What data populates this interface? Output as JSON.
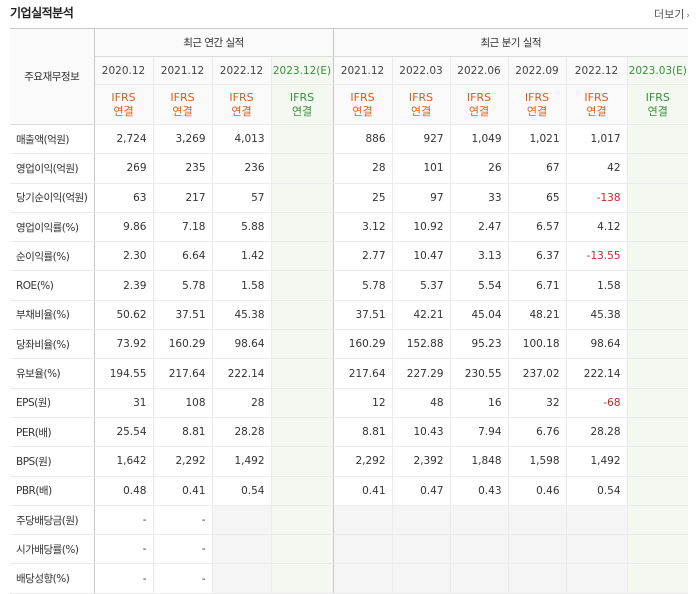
{
  "header": {
    "title": "기업실적분석",
    "more": "더보기"
  },
  "table": {
    "row_header_label": "주요재무정보",
    "annual_group": "최근 연간 실적",
    "quarter_group": "최근 분기 실적",
    "annual_dates": [
      "2020.12",
      "2021.12",
      "2022.12",
      "2023.12(E)"
    ],
    "quarter_dates": [
      "2021.12",
      "2022.03",
      "2022.06",
      "2022.09",
      "2022.12",
      "2023.03(E)"
    ],
    "basis_line1": "IFRS",
    "basis_line2": "연결",
    "rows": [
      {
        "label": "매출액(억원)",
        "values": [
          "2,724",
          "3,269",
          "4,013",
          "",
          "886",
          "927",
          "1,049",
          "1,021",
          "1,017",
          ""
        ]
      },
      {
        "label": "영업이익(억원)",
        "values": [
          "269",
          "235",
          "236",
          "",
          "28",
          "101",
          "26",
          "67",
          "42",
          ""
        ]
      },
      {
        "label": "당기순이익(억원)",
        "values": [
          "63",
          "217",
          "57",
          "",
          "25",
          "97",
          "33",
          "65",
          "-138",
          ""
        ]
      },
      {
        "label": "영업이익률(%)",
        "values": [
          "9.86",
          "7.18",
          "5.88",
          "",
          "3.12",
          "10.92",
          "2.47",
          "6.57",
          "4.12",
          ""
        ]
      },
      {
        "label": "순이익률(%)",
        "values": [
          "2.30",
          "6.64",
          "1.42",
          "",
          "2.77",
          "10.47",
          "3.13",
          "6.37",
          "-13.55",
          ""
        ]
      },
      {
        "label": "ROE(%)",
        "values": [
          "2.39",
          "5.78",
          "1.58",
          "",
          "5.78",
          "5.37",
          "5.54",
          "6.71",
          "1.58",
          ""
        ]
      },
      {
        "label": "부채비율(%)",
        "values": [
          "50.62",
          "37.51",
          "45.38",
          "",
          "37.51",
          "42.21",
          "45.04",
          "48.21",
          "45.38",
          ""
        ]
      },
      {
        "label": "당좌비율(%)",
        "values": [
          "73.92",
          "160.29",
          "98.64",
          "",
          "160.29",
          "152.88",
          "95.23",
          "100.18",
          "98.64",
          ""
        ]
      },
      {
        "label": "유보율(%)",
        "values": [
          "194.55",
          "217.64",
          "222.14",
          "",
          "217.64",
          "227.29",
          "230.55",
          "237.02",
          "222.14",
          ""
        ]
      },
      {
        "label": "EPS(원)",
        "values": [
          "31",
          "108",
          "28",
          "",
          "12",
          "48",
          "16",
          "32",
          "-68",
          ""
        ]
      },
      {
        "label": "PER(배)",
        "values": [
          "25.54",
          "8.81",
          "28.28",
          "",
          "8.81",
          "10.43",
          "7.94",
          "6.76",
          "28.28",
          ""
        ]
      },
      {
        "label": "BPS(원)",
        "values": [
          "1,642",
          "2,292",
          "1,492",
          "",
          "2,292",
          "2,392",
          "1,848",
          "1,598",
          "1,492",
          ""
        ]
      },
      {
        "label": "PBR(배)",
        "values": [
          "0.48",
          "0.41",
          "0.54",
          "",
          "0.41",
          "0.47",
          "0.43",
          "0.46",
          "0.54",
          ""
        ]
      },
      {
        "label": "주당배당금(원)",
        "values": [
          "-",
          "-",
          "",
          "",
          "",
          "",
          "",
          "",
          "",
          ""
        ]
      },
      {
        "label": "시가배당률(%)",
        "values": [
          "-",
          "-",
          "",
          "",
          "",
          "",
          "",
          "",
          "",
          ""
        ]
      },
      {
        "label": "배당성향(%)",
        "values": [
          "-",
          "-",
          "",
          "",
          "",
          "",
          "",
          "",
          "",
          ""
        ]
      }
    ]
  }
}
